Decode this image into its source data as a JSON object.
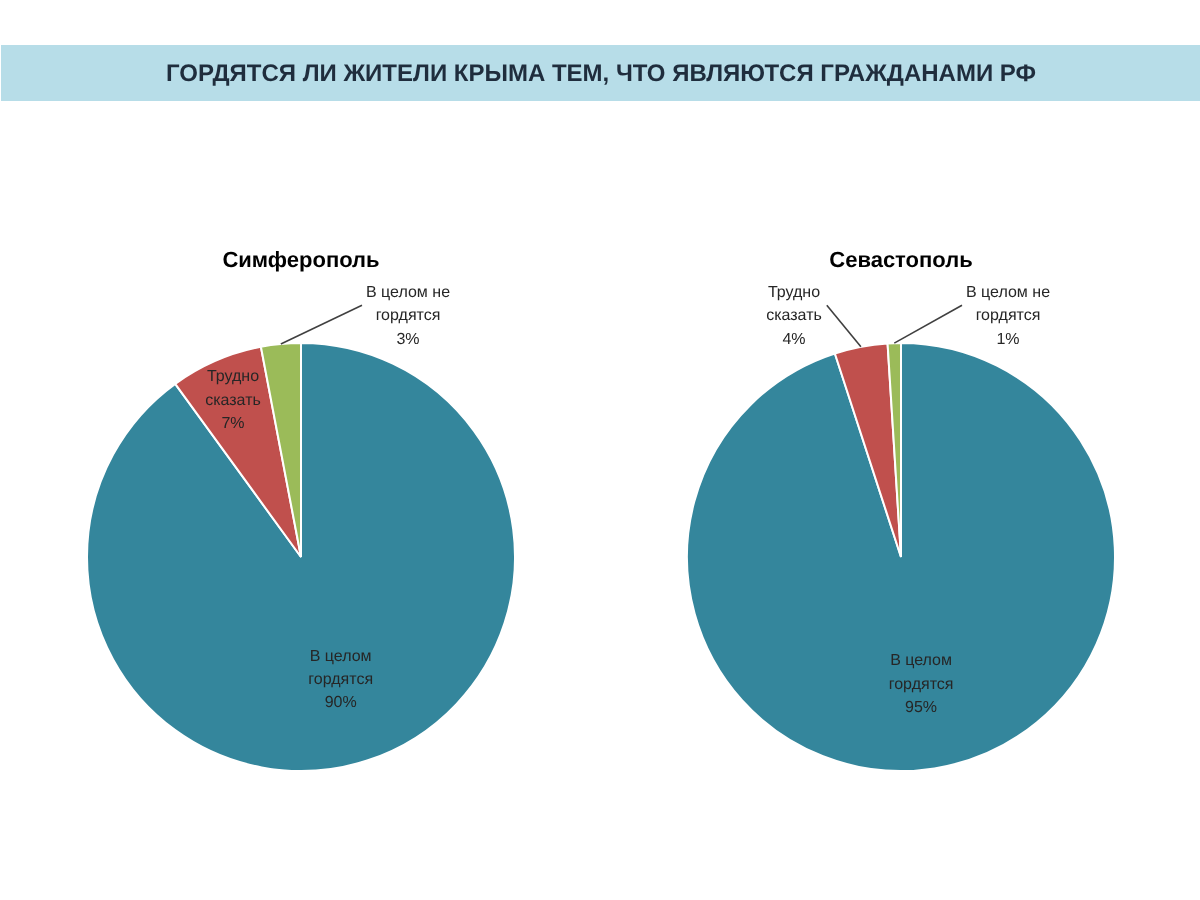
{
  "chart_data": [
    {
      "type": "pie",
      "title": "ГОРДЯТСЯ ЛИ ЖИТЕЛИ КРЫМА ТЕМ, ЧТО ЯВЛЯЮТСЯ ГРАЖДАНАМИ РФ",
      "subtitle": "Симферополь",
      "categories": [
        "В целом гордятся",
        "Трудно сказать",
        "В целом не гордятся"
      ],
      "values": [
        90,
        7,
        3
      ],
      "colors": [
        "#34869c",
        "#c0504d",
        "#9bbb59"
      ],
      "value_labels": [
        "90%",
        "7%",
        "3%"
      ]
    },
    {
      "type": "pie",
      "subtitle": "Севастополь",
      "categories": [
        "В целом гордятся",
        "Трудно сказать",
        "В целом не гордятся"
      ],
      "values": [
        95,
        4,
        1
      ],
      "colors": [
        "#34869c",
        "#c0504d",
        "#9bbb59"
      ],
      "value_labels": [
        "95%",
        "4%",
        "1%"
      ]
    }
  ]
}
